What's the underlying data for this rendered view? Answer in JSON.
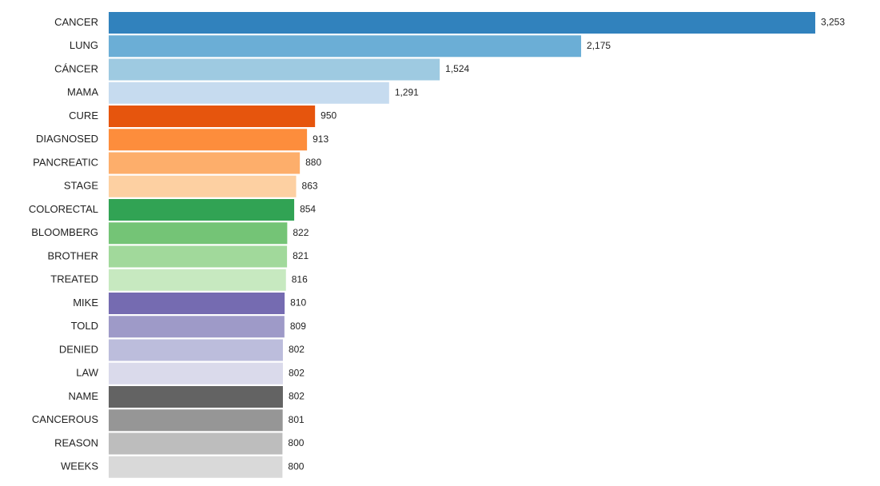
{
  "chart_data": {
    "type": "bar",
    "orientation": "horizontal",
    "title": "",
    "xlabel": "",
    "ylabel": "",
    "xlim": [
      0,
      3253
    ],
    "grid": false,
    "categories": [
      "CANCER",
      "LUNG",
      "CÁNCER",
      "MAMA",
      "CURE",
      "DIAGNOSED",
      "PANCREATIC",
      "STAGE",
      "COLORECTAL",
      "BLOOMBERG",
      "BROTHER",
      "TREATED",
      "MIKE",
      "TOLD",
      "DENIED",
      "LAW",
      "NAME",
      "CANCEROUS",
      "REASON",
      "WEEKS"
    ],
    "values": [
      3253,
      2175,
      1524,
      1291,
      950,
      913,
      880,
      863,
      854,
      822,
      821,
      816,
      810,
      809,
      802,
      802,
      802,
      801,
      800,
      800
    ],
    "value_labels": [
      "3,253",
      "2,175",
      "1,524",
      "1,291",
      "950",
      "913",
      "880",
      "863",
      "854",
      "822",
      "821",
      "816",
      "810",
      "809",
      "802",
      "802",
      "802",
      "801",
      "800",
      "800"
    ],
    "colors": [
      "#3182bd",
      "#6baed6",
      "#9ecae1",
      "#c6dbef",
      "#e6550d",
      "#fd8d3c",
      "#fdae6b",
      "#fdd0a2",
      "#31a354",
      "#74c476",
      "#a1d99b",
      "#c7e9c0",
      "#756bb1",
      "#9e9ac8",
      "#bcbddc",
      "#dadaeb",
      "#636363",
      "#969696",
      "#bdbdbd",
      "#d9d9d9"
    ]
  }
}
